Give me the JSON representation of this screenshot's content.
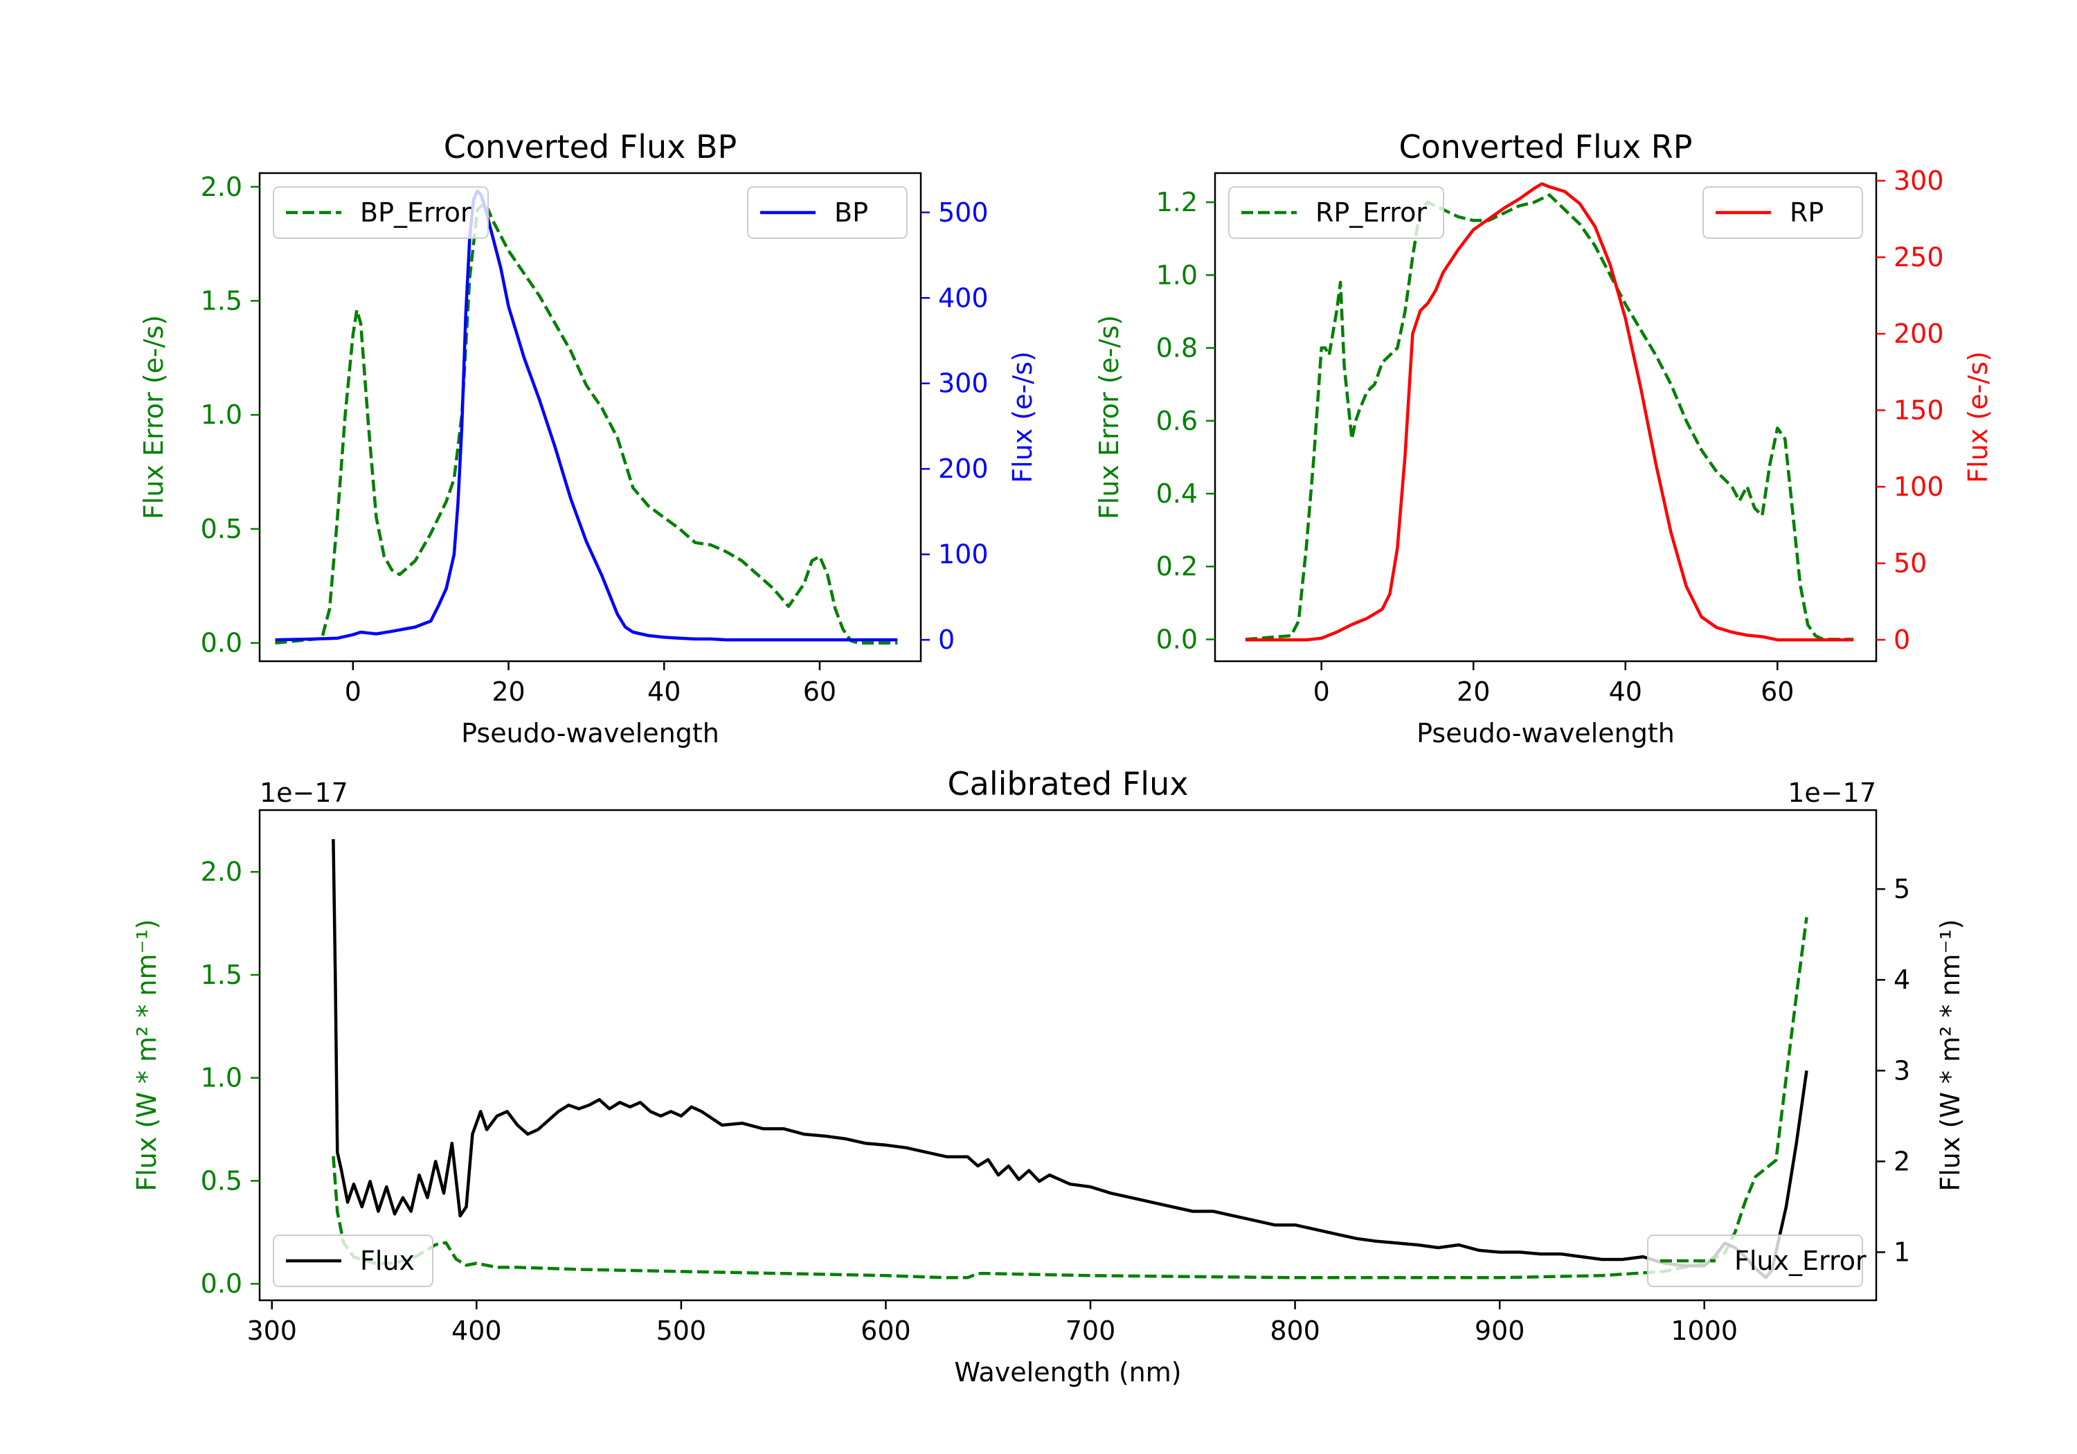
{
  "colors": {
    "bp_error": "#008000",
    "bp": "#0000ff",
    "rp_error": "#008000",
    "rp": "#ff0000",
    "flux": "#000000",
    "flux_error": "#008000",
    "axes": "#000000"
  },
  "chart_data": [
    {
      "id": "bp",
      "type": "line",
      "title": "Converted Flux BP",
      "xlabel": "Pseudo-wavelength",
      "ylabel_left": "Flux Error (e-/s)",
      "ylabel_right": "Flux (e-/s)",
      "xlim": [
        -12,
        73
      ],
      "ylim_left": [
        -0.08,
        2.06
      ],
      "ylim_right": [
        -25,
        546
      ],
      "xticks": [
        0,
        20,
        40,
        60
      ],
      "xtick_labels": [
        "0",
        "20",
        "40",
        "60"
      ],
      "yticks_left": [
        0.0,
        0.5,
        1.0,
        1.5,
        2.0
      ],
      "ytick_labels_left": [
        "0.0",
        "0.5",
        "1.0",
        "1.5",
        "2.0"
      ],
      "yticks_right": [
        0,
        100,
        200,
        300,
        400,
        500
      ],
      "ytick_labels_right": [
        "0",
        "100",
        "200",
        "300",
        "400",
        "500"
      ],
      "legend_left": {
        "label": "BP_Error",
        "position": "top-left"
      },
      "legend_right": {
        "label": "BP",
        "position": "top-right"
      },
      "series_left": {
        "name": "BP_Error",
        "style": "dashed",
        "x": [
          -10,
          -4,
          -3,
          -2,
          -1,
          0,
          0.5,
          1,
          2,
          3,
          4,
          5,
          6,
          8,
          10,
          12,
          13,
          14,
          15,
          16,
          17,
          18,
          20,
          22,
          24,
          26,
          28,
          30,
          32,
          34,
          36,
          38,
          40,
          42,
          44,
          46,
          48,
          50,
          52,
          54,
          56,
          58,
          59,
          60,
          61,
          62,
          63,
          64,
          65,
          67,
          70
        ],
        "y": [
          0.0,
          0.02,
          0.15,
          0.55,
          1.0,
          1.35,
          1.46,
          1.4,
          0.95,
          0.55,
          0.38,
          0.32,
          0.3,
          0.36,
          0.48,
          0.62,
          0.72,
          1.0,
          1.6,
          1.9,
          1.93,
          1.85,
          1.72,
          1.62,
          1.52,
          1.4,
          1.28,
          1.13,
          1.03,
          0.9,
          0.68,
          0.6,
          0.55,
          0.5,
          0.44,
          0.43,
          0.4,
          0.36,
          0.3,
          0.24,
          0.16,
          0.26,
          0.36,
          0.38,
          0.3,
          0.15,
          0.06,
          0.01,
          0.0,
          0.0,
          0.0
        ]
      },
      "series_right": {
        "name": "BP",
        "style": "solid",
        "x": [
          -10,
          -5,
          -2,
          0,
          1,
          2,
          3,
          5,
          8,
          10,
          11,
          12,
          13,
          13.5,
          14,
          14.5,
          15,
          15.5,
          16,
          16.5,
          17,
          18,
          19,
          20,
          22,
          24,
          26,
          28,
          30,
          32,
          34,
          35,
          36,
          38,
          40,
          42,
          44,
          46,
          48,
          50,
          55,
          60,
          62,
          65,
          70
        ],
        "y": [
          0,
          1,
          2,
          6,
          9,
          8,
          7,
          10,
          15,
          22,
          40,
          60,
          100,
          160,
          250,
          380,
          470,
          515,
          525,
          520,
          505,
          470,
          435,
          390,
          330,
          280,
          225,
          165,
          115,
          75,
          30,
          15,
          9,
          5,
          3,
          2,
          1,
          1,
          0,
          0,
          0,
          0,
          0,
          0,
          0
        ]
      }
    },
    {
      "id": "rp",
      "type": "line",
      "title": "Converted Flux RP",
      "xlabel": "Pseudo-wavelength",
      "ylabel_left": "Flux Error (e-/s)",
      "ylabel_right": "Flux (e-/s)",
      "xlim": [
        -14,
        73
      ],
      "ylim_left": [
        -0.06,
        1.28
      ],
      "ylim_right": [
        -14,
        305
      ],
      "xticks": [
        0,
        20,
        40,
        60
      ],
      "xtick_labels": [
        "0",
        "20",
        "40",
        "60"
      ],
      "yticks_left": [
        0.0,
        0.2,
        0.4,
        0.6,
        0.8,
        1.0,
        1.2
      ],
      "ytick_labels_left": [
        "0.0",
        "0.2",
        "0.4",
        "0.6",
        "0.8",
        "1.0",
        "1.2"
      ],
      "yticks_right": [
        0,
        50,
        100,
        150,
        200,
        250,
        300
      ],
      "ytick_labels_right": [
        "0",
        "50",
        "100",
        "150",
        "200",
        "250",
        "300"
      ],
      "legend_left": {
        "label": "RP_Error",
        "position": "top-left"
      },
      "legend_right": {
        "label": "RP",
        "position": "top-right"
      },
      "series_left": {
        "name": "RP_Error",
        "style": "dashed",
        "x": [
          -10,
          -4,
          -3,
          -2,
          -1,
          0,
          0.5,
          1,
          2,
          2.5,
          3,
          4,
          4.5,
          5,
          6,
          7,
          8,
          10,
          11,
          12,
          13,
          14,
          16,
          18,
          20,
          22,
          24,
          26,
          28,
          30,
          32,
          34,
          36,
          38,
          40,
          42,
          44,
          46,
          48,
          50,
          52,
          54,
          55,
          56,
          57,
          58,
          59,
          60,
          61,
          62,
          63,
          64,
          65,
          66,
          70
        ],
        "y": [
          0.0,
          0.01,
          0.05,
          0.25,
          0.5,
          0.8,
          0.8,
          0.78,
          0.9,
          0.98,
          0.75,
          0.55,
          0.6,
          0.63,
          0.68,
          0.7,
          0.76,
          0.8,
          0.9,
          1.05,
          1.18,
          1.2,
          1.18,
          1.16,
          1.15,
          1.15,
          1.17,
          1.19,
          1.2,
          1.22,
          1.18,
          1.14,
          1.08,
          1.0,
          0.92,
          0.85,
          0.78,
          0.7,
          0.6,
          0.52,
          0.46,
          0.42,
          0.38,
          0.42,
          0.36,
          0.34,
          0.48,
          0.58,
          0.55,
          0.35,
          0.15,
          0.04,
          0.01,
          0.0,
          0.0
        ]
      },
      "series_right": {
        "name": "RP",
        "style": "solid",
        "x": [
          -10,
          -5,
          -2,
          0,
          2,
          4,
          6,
          8,
          9,
          10,
          11,
          12,
          13,
          14,
          15,
          16,
          18,
          20,
          22,
          24,
          26,
          28,
          29,
          30,
          32,
          34,
          36,
          38,
          40,
          42,
          44,
          46,
          48,
          50,
          52,
          54,
          56,
          58,
          60,
          62,
          65,
          70
        ],
        "y": [
          0,
          0,
          0,
          1,
          5,
          10,
          14,
          20,
          30,
          60,
          120,
          200,
          215,
          220,
          228,
          240,
          255,
          268,
          275,
          282,
          288,
          295,
          298,
          296,
          293,
          285,
          270,
          245,
          210,
          165,
          115,
          70,
          35,
          15,
          8,
          5,
          3,
          2,
          0,
          0,
          0,
          0
        ]
      }
    },
    {
      "id": "calibrated",
      "type": "line",
      "title": "Calibrated Flux",
      "xlabel": "Wavelength (nm)",
      "ylabel_left": "Flux (W * m² * nm⁻¹)",
      "ylabel_right": "Flux (W * m² * nm⁻¹)",
      "offset_left": "1e−17",
      "offset_right": "1e−17",
      "xlim": [
        294,
        1084
      ],
      "ylim_left": [
        -0.08,
        2.3
      ],
      "ylim_right": [
        0.47,
        5.87
      ],
      "xticks": [
        300,
        400,
        500,
        600,
        700,
        800,
        900,
        1000
      ],
      "xtick_labels": [
        "300",
        "400",
        "500",
        "600",
        "700",
        "800",
        "900",
        "1000"
      ],
      "yticks_left": [
        0.0,
        0.5,
        1.0,
        1.5,
        2.0
      ],
      "ytick_labels_left": [
        "0.0",
        "0.5",
        "1.0",
        "1.5",
        "2.0"
      ],
      "yticks_right": [
        1,
        2,
        3,
        4,
        5
      ],
      "ytick_labels_right": [
        "1",
        "2",
        "3",
        "4",
        "5"
      ],
      "legend_left": {
        "label": "Flux",
        "position": "bottom-left"
      },
      "legend_right": {
        "label": "Flux_Error",
        "position": "bottom-right"
      },
      "series_left": {
        "name": "Flux_Error",
        "style": "dashed",
        "x": [
          330,
          332,
          335,
          340,
          350,
          360,
          370,
          380,
          385,
          390,
          395,
          400,
          410,
          420,
          450,
          500,
          550,
          600,
          630,
          640,
          645,
          650,
          700,
          800,
          900,
          950,
          980,
          1000,
          1010,
          1015,
          1020,
          1025,
          1030,
          1035,
          1040,
          1045,
          1050
        ],
        "y": [
          0.62,
          0.35,
          0.2,
          0.13,
          0.1,
          0.1,
          0.13,
          0.19,
          0.2,
          0.12,
          0.09,
          0.1,
          0.08,
          0.08,
          0.07,
          0.06,
          0.05,
          0.04,
          0.03,
          0.03,
          0.05,
          0.05,
          0.04,
          0.03,
          0.03,
          0.04,
          0.06,
          0.1,
          0.15,
          0.25,
          0.4,
          0.52,
          0.56,
          0.6,
          1.0,
          1.4,
          1.78
        ]
      },
      "series_right": {
        "name": "Flux",
        "style": "solid",
        "x": [
          330,
          331,
          332,
          334,
          337,
          340,
          344,
          348,
          352,
          356,
          360,
          364,
          368,
          372,
          376,
          380,
          384,
          388,
          392,
          395,
          398,
          402,
          405,
          410,
          415,
          420,
          425,
          430,
          435,
          440,
          445,
          450,
          455,
          460,
          465,
          470,
          475,
          480,
          485,
          490,
          495,
          500,
          505,
          510,
          520,
          530,
          540,
          550,
          560,
          570,
          580,
          590,
          600,
          610,
          620,
          630,
          640,
          645,
          650,
          655,
          660,
          665,
          670,
          675,
          680,
          690,
          700,
          710,
          720,
          730,
          740,
          750,
          760,
          770,
          780,
          790,
          800,
          810,
          820,
          830,
          840,
          850,
          860,
          870,
          880,
          890,
          900,
          910,
          920,
          930,
          940,
          950,
          960,
          970,
          980,
          990,
          1000,
          1005,
          1010,
          1015,
          1020,
          1025,
          1030,
          1033,
          1036,
          1040,
          1045,
          1050
        ],
        "y": [
          5.55,
          4.0,
          2.1,
          1.9,
          1.55,
          1.75,
          1.5,
          1.78,
          1.45,
          1.72,
          1.42,
          1.6,
          1.45,
          1.85,
          1.6,
          2.0,
          1.65,
          2.2,
          1.4,
          1.5,
          2.3,
          2.55,
          2.35,
          2.5,
          2.55,
          2.4,
          2.3,
          2.35,
          2.45,
          2.55,
          2.62,
          2.58,
          2.62,
          2.68,
          2.58,
          2.65,
          2.6,
          2.65,
          2.55,
          2.5,
          2.55,
          2.5,
          2.6,
          2.55,
          2.4,
          2.42,
          2.36,
          2.36,
          2.3,
          2.28,
          2.25,
          2.2,
          2.18,
          2.15,
          2.1,
          2.05,
          2.05,
          1.95,
          2.02,
          1.85,
          1.95,
          1.8,
          1.9,
          1.78,
          1.85,
          1.75,
          1.72,
          1.65,
          1.6,
          1.55,
          1.5,
          1.45,
          1.45,
          1.4,
          1.35,
          1.3,
          1.3,
          1.25,
          1.2,
          1.15,
          1.12,
          1.1,
          1.08,
          1.05,
          1.08,
          1.02,
          1.0,
          1.0,
          0.98,
          0.98,
          0.95,
          0.92,
          0.92,
          0.95,
          0.88,
          0.85,
          0.85,
          0.95,
          1.1,
          1.05,
          0.95,
          0.82,
          0.72,
          0.8,
          1.1,
          1.5,
          2.2,
          3.0
        ]
      }
    }
  ]
}
